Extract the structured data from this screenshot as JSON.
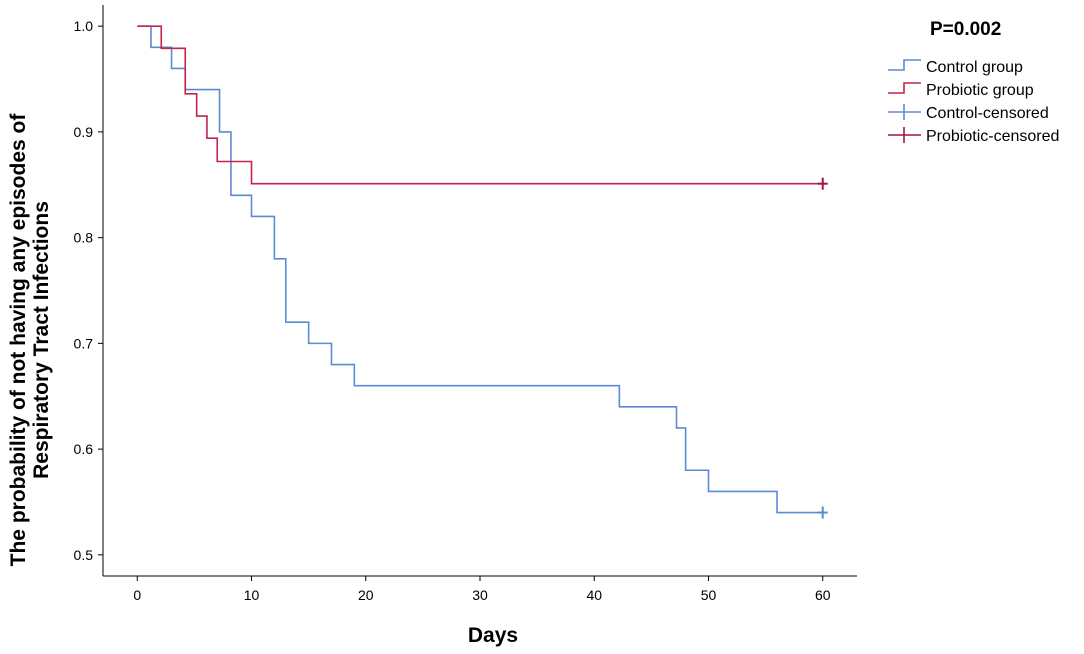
{
  "chart_data": {
    "type": "line",
    "subtype": "kaplan-meier step",
    "xlabel": "Days",
    "ylabel_line1": "The probability of not having any episodes of",
    "ylabel_line2": "Respiratory Tract Infections",
    "annotation": "P=0.002",
    "xlim": [
      -3,
      63
    ],
    "ylim": [
      0.48,
      1.02
    ],
    "x_ticks": [
      0,
      10,
      20,
      30,
      40,
      50,
      60
    ],
    "x_tick_labels": [
      "0",
      "10",
      "20",
      "30",
      "40",
      "50",
      "60"
    ],
    "y_ticks": [
      0.5,
      0.6,
      0.7,
      0.8,
      0.9,
      1.0
    ],
    "y_tick_labels": [
      "0.5",
      "0.6",
      "0.7",
      "0.8",
      "0.9",
      "1.0"
    ],
    "grid": false,
    "legend_position": "top-right",
    "series": [
      {
        "name": "Control group",
        "color": "#5b8bd1",
        "steps": [
          [
            0,
            1.0
          ],
          [
            1.2,
            0.98
          ],
          [
            3,
            0.96
          ],
          [
            4.2,
            0.94
          ],
          [
            7.2,
            0.9
          ],
          [
            8.2,
            0.84
          ],
          [
            10,
            0.82
          ],
          [
            12,
            0.78
          ],
          [
            13,
            0.72
          ],
          [
            15,
            0.7
          ],
          [
            17,
            0.68
          ],
          [
            19,
            0.66
          ],
          [
            42.2,
            0.64
          ],
          [
            47.2,
            0.62
          ],
          [
            48,
            0.58
          ],
          [
            50,
            0.56
          ],
          [
            56,
            0.54
          ]
        ],
        "end_x": 60
      },
      {
        "name": "Probiotic group",
        "color": "#c4234a",
        "steps": [
          [
            0,
            1.0
          ],
          [
            2.1,
            0.979
          ],
          [
            4.2,
            0.936
          ],
          [
            5.2,
            0.915
          ],
          [
            6.1,
            0.894
          ],
          [
            7,
            0.872
          ],
          [
            10,
            0.851
          ]
        ],
        "end_x": 60
      }
    ],
    "censored": [
      {
        "name": "Control-censored",
        "color": "#5b8bd1",
        "points": [
          [
            60,
            0.54
          ]
        ]
      },
      {
        "name": "Probiotic-censored",
        "color": "#a0173d",
        "points": [
          [
            60,
            0.851
          ]
        ]
      }
    ],
    "legend": [
      {
        "label": "Control group",
        "color": "#5b8bd1",
        "symbol": "step"
      },
      {
        "label": "Probiotic group",
        "color": "#c4234a",
        "symbol": "step"
      },
      {
        "label": "Control-censored",
        "color": "#5b8bd1",
        "symbol": "plus"
      },
      {
        "label": "Probiotic-censored",
        "color": "#a0173d",
        "symbol": "plus"
      }
    ]
  }
}
